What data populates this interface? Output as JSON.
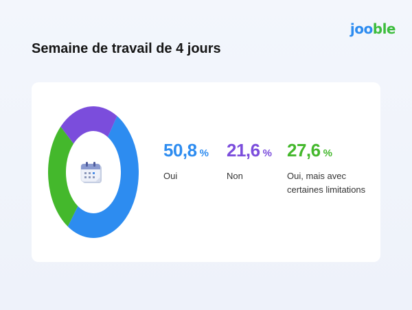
{
  "logo": {
    "part1": "joo",
    "part2": "ble"
  },
  "title": "Semaine de travail de 4 jours",
  "calendar_icon": "calendar-icon",
  "colors": {
    "oui": "#2d8cf0",
    "non": "#7b4ddc",
    "limitations": "#44b82c"
  },
  "stats": [
    {
      "value": "50,8",
      "unit": "%",
      "label": "Oui"
    },
    {
      "value": "21,6",
      "unit": "%",
      "label": "Non"
    },
    {
      "value": "27,6",
      "unit": "%",
      "label": "Oui, mais avec certaines limitations"
    }
  ],
  "chart_data": {
    "type": "pie",
    "categories": [
      "Oui",
      "Non",
      "Oui, mais avec certaines limitations"
    ],
    "values": [
      50.8,
      21.6,
      27.6
    ],
    "title": "Semaine de travail de 4 jours",
    "legend": "right"
  }
}
